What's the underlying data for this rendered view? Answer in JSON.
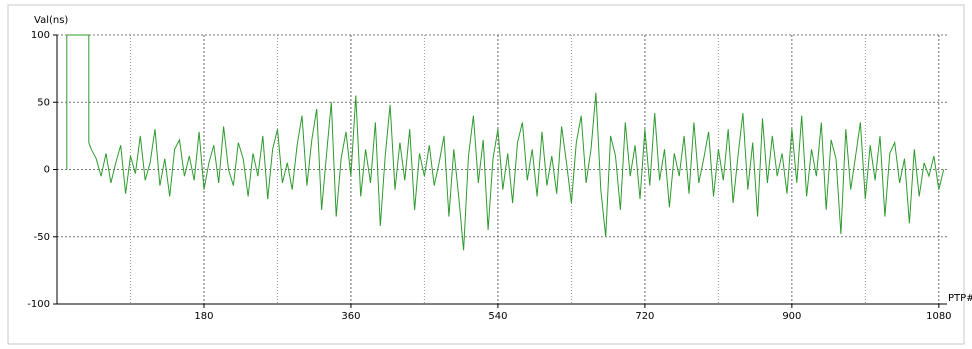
{
  "chart_data": {
    "type": "line",
    "ylabel": "Val(ns)",
    "xlabel": "PTP#",
    "color": "#2e9a2e",
    "xlim": [
      0,
      1090
    ],
    "ylim": [
      -100,
      100
    ],
    "xticks": [
      180,
      360,
      540,
      720,
      900,
      1080
    ],
    "x_minor_ticks": [
      90,
      270,
      450,
      630,
      810,
      990
    ],
    "yticks": [
      -100,
      -50,
      0,
      50,
      100
    ],
    "grid": true,
    "x": [
      12,
      12,
      39,
      39,
      42,
      48,
      54,
      60,
      66,
      72,
      78,
      84,
      90,
      96,
      102,
      108,
      114,
      120,
      126,
      132,
      138,
      144,
      150,
      156,
      162,
      168,
      174,
      180,
      186,
      192,
      198,
      204,
      210,
      216,
      222,
      228,
      234,
      240,
      246,
      252,
      258,
      264,
      270,
      276,
      282,
      288,
      294,
      300,
      306,
      312,
      318,
      324,
      330,
      336,
      342,
      348,
      354,
      360,
      366,
      372,
      378,
      384,
      390,
      396,
      402,
      408,
      414,
      420,
      426,
      432,
      438,
      444,
      450,
      456,
      462,
      468,
      474,
      480,
      486,
      492,
      498,
      504,
      510,
      516,
      522,
      528,
      534,
      540,
      546,
      552,
      558,
      564,
      570,
      576,
      582,
      588,
      594,
      600,
      606,
      612,
      618,
      624,
      630,
      636,
      642,
      648,
      654,
      660,
      666,
      672,
      678,
      684,
      690,
      696,
      702,
      708,
      714,
      720,
      726,
      732,
      738,
      744,
      750,
      756,
      762,
      768,
      774,
      780,
      786,
      792,
      798,
      804,
      810,
      816,
      822,
      828,
      834,
      840,
      846,
      852,
      858,
      864,
      870,
      876,
      882,
      888,
      894,
      900,
      906,
      912,
      918,
      924,
      930,
      936,
      942,
      948,
      954,
      960,
      966,
      972,
      978,
      984,
      990,
      996,
      1002,
      1008,
      1014,
      1020,
      1026,
      1032,
      1038,
      1044,
      1050,
      1056,
      1062,
      1068,
      1074,
      1080,
      1086
    ],
    "values": [
      0,
      100,
      100,
      20,
      15,
      8,
      -5,
      12,
      -10,
      5,
      18,
      -18,
      10,
      -3,
      25,
      -8,
      5,
      30,
      -12,
      8,
      -20,
      15,
      22,
      -5,
      10,
      -8,
      28,
      -15,
      5,
      18,
      -10,
      32,
      0,
      -12,
      20,
      8,
      -20,
      12,
      -5,
      25,
      -22,
      15,
      30,
      -10,
      5,
      -15,
      18,
      40,
      -12,
      22,
      45,
      -30,
      10,
      50,
      -35,
      8,
      28,
      -5,
      55,
      -20,
      15,
      -10,
      35,
      -42,
      10,
      48,
      -15,
      20,
      -8,
      30,
      -30,
      12,
      -5,
      18,
      -12,
      5,
      25,
      -35,
      15,
      -20,
      -60,
      10,
      40,
      -10,
      22,
      -45,
      8,
      30,
      -15,
      12,
      -25,
      20,
      35,
      -8,
      15,
      -20,
      28,
      -12,
      10,
      -18,
      32,
      5,
      -25,
      20,
      40,
      -10,
      15,
      57,
      -15,
      -50,
      25,
      10,
      -30,
      35,
      -5,
      18,
      -22,
      30,
      -12,
      42,
      -8,
      15,
      -28,
      12,
      -5,
      25,
      -18,
      35,
      -10,
      8,
      28,
      -20,
      15,
      -8,
      30,
      -25,
      10,
      42,
      -15,
      20,
      -35,
      38,
      -10,
      25,
      -5,
      12,
      -18,
      30,
      -10,
      40,
      -20,
      15,
      -5,
      35,
      -30,
      22,
      8,
      -48,
      30,
      -15,
      10,
      35,
      -22,
      18,
      -8,
      25,
      -35,
      12,
      20,
      -10,
      8,
      -40,
      15,
      -20,
      5,
      -5,
      10,
      -15,
      0
    ]
  }
}
